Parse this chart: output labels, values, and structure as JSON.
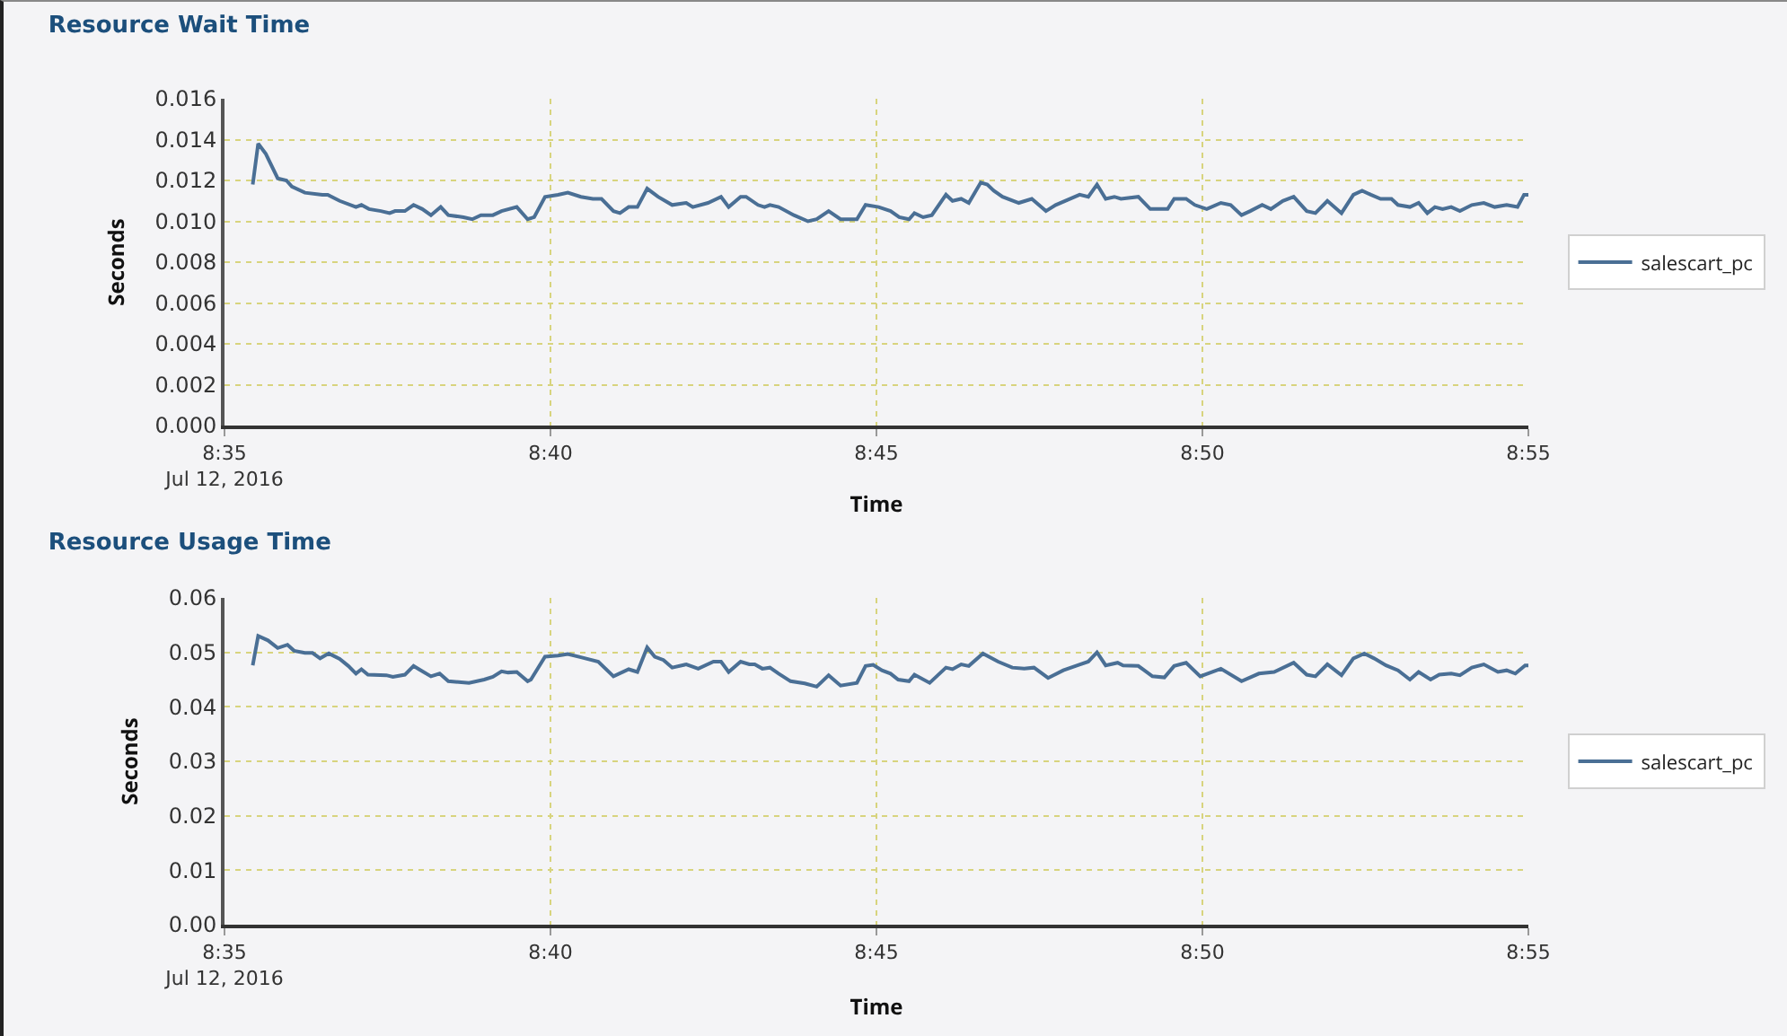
{
  "chart_data": [
    {
      "type": "line",
      "title": "Resource Wait Time",
      "xlabel": "Time",
      "ylabel": "Seconds",
      "legend": "right",
      "grid": true,
      "marker": "none",
      "line_style": "solid",
      "xlim": [
        "2016-07-12T08:35",
        "2016-07-12T08:55"
      ],
      "xticks": [
        {
          "value": "2016-07-12T08:35",
          "label": "8:35\nJul 12, 2016"
        },
        {
          "value": "2016-07-12T08:40",
          "label": "8:40"
        },
        {
          "value": "2016-07-12T08:45",
          "label": "8:45"
        },
        {
          "value": "2016-07-12T08:50",
          "label": "8:50"
        },
        {
          "value": "2016-07-12T08:55",
          "label": "8:55"
        }
      ],
      "ylim": [
        0,
        0.016
      ],
      "yticks": [
        {
          "value": 0,
          "label": "0.000"
        },
        {
          "value": 0.002,
          "label": "0.002"
        },
        {
          "value": 0.004,
          "label": "0.004"
        },
        {
          "value": 0.006,
          "label": "0.006"
        },
        {
          "value": 0.008,
          "label": "0.008"
        },
        {
          "value": 0.01,
          "label": "0.010"
        },
        {
          "value": 0.012,
          "label": "0.012"
        },
        {
          "value": 0.014,
          "label": "0.014"
        },
        {
          "value": 0.016,
          "label": "0.016"
        }
      ],
      "x": [
        "2016-07-12T08:35:26",
        "2016-07-12T08:35:31",
        "2016-07-12T08:35:38",
        "2016-07-12T08:35:49",
        "2016-07-12T08:35:57",
        "2016-07-12T08:36:02",
        "2016-07-12T08:36:14",
        "2016-07-12T08:36:30",
        "2016-07-12T08:36:35",
        "2016-07-12T08:36:46",
        "2016-07-12T08:37:01",
        "2016-07-12T08:37:06",
        "2016-07-12T08:37:13",
        "2016-07-12T08:37:24",
        "2016-07-12T08:37:32",
        "2016-07-12T08:37:37",
        "2016-07-12T08:37:46",
        "2016-07-12T08:37:54",
        "2016-07-12T08:38:02",
        "2016-07-12T08:38:10",
        "2016-07-12T08:38:19",
        "2016-07-12T08:38:26",
        "2016-07-12T08:38:40",
        "2016-07-12T08:38:48",
        "2016-07-12T08:38:56",
        "2016-07-12T08:39:07",
        "2016-07-12T08:39:15",
        "2016-07-12T08:39:29",
        "2016-07-12T08:39:39",
        "2016-07-12T08:39:45",
        "2016-07-12T08:39:55",
        "2016-07-12T08:40:07",
        "2016-07-12T08:40:16",
        "2016-07-12T08:40:28",
        "2016-07-12T08:40:39",
        "2016-07-12T08:40:47",
        "2016-07-12T08:40:58",
        "2016-07-12T08:41:04",
        "2016-07-12T08:41:12",
        "2016-07-12T08:41:20",
        "2016-07-12T08:41:29",
        "2016-07-12T08:41:39",
        "2016-07-12T08:41:52",
        "2016-07-12T08:42:05",
        "2016-07-12T08:42:11",
        "2016-07-12T08:42:25",
        "2016-07-12T08:42:37",
        "2016-07-12T08:42:44",
        "2016-07-12T08:42:55",
        "2016-07-12T08:43:00",
        "2016-07-12T08:43:11",
        "2016-07-12T08:43:17",
        "2016-07-12T08:43:22",
        "2016-07-12T08:43:30",
        "2016-07-12T08:43:44",
        "2016-07-12T08:43:57",
        "2016-07-12T08:44:05",
        "2016-07-12T08:44:16",
        "2016-07-12T08:44:27",
        "2016-07-12T08:44:42",
        "2016-07-12T08:44:50",
        "2016-07-12T08:45:02",
        "2016-07-12T08:45:13",
        "2016-07-12T08:45:21",
        "2016-07-12T08:45:30",
        "2016-07-12T08:45:35",
        "2016-07-12T08:45:43",
        "2016-07-12T08:45:51",
        "2016-07-12T08:46:04",
        "2016-07-12T08:46:10",
        "2016-07-12T08:46:18",
        "2016-07-12T08:46:25",
        "2016-07-12T08:46:36",
        "2016-07-12T08:46:42",
        "2016-07-12T08:46:48",
        "2016-07-12T08:46:56",
        "2016-07-12T08:47:11",
        "2016-07-12T08:47:23",
        "2016-07-12T08:47:36",
        "2016-07-12T08:47:45",
        "2016-07-12T08:48:07",
        "2016-07-12T08:48:15",
        "2016-07-12T08:48:23",
        "2016-07-12T08:48:31",
        "2016-07-12T08:48:39",
        "2016-07-12T08:48:45",
        "2016-07-12T08:49:01",
        "2016-07-12T08:49:12",
        "2016-07-12T08:49:28",
        "2016-07-12T08:49:34",
        "2016-07-12T08:49:45",
        "2016-07-12T08:49:53",
        "2016-07-12T08:50:04",
        "2016-07-12T08:50:17",
        "2016-07-12T08:50:26",
        "2016-07-12T08:50:36",
        "2016-07-12T08:50:44",
        "2016-07-12T08:50:55",
        "2016-07-12T08:51:03",
        "2016-07-12T08:51:14",
        "2016-07-12T08:51:24",
        "2016-07-12T08:51:36",
        "2016-07-12T08:51:44",
        "2016-07-12T08:51:55",
        "2016-07-12T08:52:08",
        "2016-07-12T08:52:19",
        "2016-07-12T08:52:27",
        "2016-07-12T08:52:35",
        "2016-07-12T08:52:44",
        "2016-07-12T08:52:54",
        "2016-07-12T08:53:00",
        "2016-07-12T08:53:11",
        "2016-07-12T08:53:19",
        "2016-07-12T08:53:27",
        "2016-07-12T08:53:34",
        "2016-07-12T08:53:41",
        "2016-07-12T08:53:49",
        "2016-07-12T08:53:57",
        "2016-07-12T08:54:08",
        "2016-07-12T08:54:19",
        "2016-07-12T08:54:29",
        "2016-07-12T08:54:40",
        "2016-07-12T08:54:50",
        "2016-07-12T08:54:56",
        "2016-07-12T08:55:00"
      ],
      "series": [
        {
          "name": "salescart_pc",
          "color": "#4a6f95",
          "values": [
            0.0118,
            0.0138,
            0.0133,
            0.0121,
            0.012,
            0.0117,
            0.0114,
            0.0113,
            0.0113,
            0.011,
            0.0107,
            0.0108,
            0.0106,
            0.0105,
            0.0104,
            0.0105,
            0.0105,
            0.0108,
            0.0106,
            0.0103,
            0.0107,
            0.0103,
            0.0102,
            0.0101,
            0.0103,
            0.0103,
            0.0105,
            0.0107,
            0.0101,
            0.0102,
            0.0112,
            0.0113,
            0.0114,
            0.0112,
            0.0111,
            0.0111,
            0.0105,
            0.0104,
            0.0107,
            0.0107,
            0.0116,
            0.0112,
            0.0108,
            0.0109,
            0.0107,
            0.0109,
            0.0112,
            0.0107,
            0.0112,
            0.0112,
            0.0108,
            0.0107,
            0.0108,
            0.0107,
            0.0103,
            0.01,
            0.0101,
            0.0105,
            0.0101,
            0.0101,
            0.0108,
            0.0107,
            0.0105,
            0.0102,
            0.0101,
            0.0104,
            0.0102,
            0.0103,
            0.0113,
            0.011,
            0.0111,
            0.0109,
            0.0119,
            0.0118,
            0.0115,
            0.0112,
            0.0109,
            0.0111,
            0.0105,
            0.0108,
            0.0113,
            0.0112,
            0.0118,
            0.0111,
            0.0112,
            0.0111,
            0.0112,
            0.0106,
            0.0106,
            0.0111,
            0.0111,
            0.0108,
            0.0106,
            0.0109,
            0.0108,
            0.0103,
            0.0105,
            0.0108,
            0.0106,
            0.011,
            0.0112,
            0.0105,
            0.0104,
            0.011,
            0.0104,
            0.0113,
            0.0115,
            0.0113,
            0.0111,
            0.0111,
            0.0108,
            0.0107,
            0.0109,
            0.0104,
            0.0107,
            0.0106,
            0.0107,
            0.0105,
            0.0108,
            0.0109,
            0.0107,
            0.0108,
            0.0107,
            0.0113,
            0.0113
          ]
        }
      ]
    },
    {
      "type": "line",
      "title": "Resource Usage Time",
      "xlabel": "Time",
      "ylabel": "Seconds",
      "legend": "right",
      "grid": true,
      "marker": "none",
      "line_style": "solid",
      "xlim": [
        "2016-07-12T08:35",
        "2016-07-12T08:55"
      ],
      "xticks": [
        {
          "value": "2016-07-12T08:35",
          "label": "8:35\nJul 12, 2016"
        },
        {
          "value": "2016-07-12T08:40",
          "label": "8:40"
        },
        {
          "value": "2016-07-12T08:45",
          "label": "8:45"
        },
        {
          "value": "2016-07-12T08:50",
          "label": "8:50"
        },
        {
          "value": "2016-07-12T08:55",
          "label": "8:55"
        }
      ],
      "ylim": [
        0,
        0.06
      ],
      "yticks": [
        {
          "value": 0,
          "label": "0.00"
        },
        {
          "value": 0.01,
          "label": "0.01"
        },
        {
          "value": 0.02,
          "label": "0.02"
        },
        {
          "value": 0.03,
          "label": "0.03"
        },
        {
          "value": 0.04,
          "label": "0.04"
        },
        {
          "value": 0.05,
          "label": "0.05"
        },
        {
          "value": 0.06,
          "label": "0.06"
        }
      ],
      "x": [
        "2016-07-12T08:35:26",
        "2016-07-12T08:35:31",
        "2016-07-12T08:35:40",
        "2016-07-12T08:35:49",
        "2016-07-12T08:35:58",
        "2016-07-12T08:36:04",
        "2016-07-12T08:36:14",
        "2016-07-12T08:36:21",
        "2016-07-12T08:36:28",
        "2016-07-12T08:36:36",
        "2016-07-12T08:36:46",
        "2016-07-12T08:36:54",
        "2016-07-12T08:37:01",
        "2016-07-12T08:37:06",
        "2016-07-12T08:37:12",
        "2016-07-12T08:37:29",
        "2016-07-12T08:37:35",
        "2016-07-12T08:37:46",
        "2016-07-12T08:37:54",
        "2016-07-12T08:37:59",
        "2016-07-12T08:38:10",
        "2016-07-12T08:38:18",
        "2016-07-12T08:38:26",
        "2016-07-12T08:38:45",
        "2016-07-12T08:38:59",
        "2016-07-12T08:39:07",
        "2016-07-12T08:39:15",
        "2016-07-12T08:39:21",
        "2016-07-12T08:39:29",
        "2016-07-12T08:39:39",
        "2016-07-12T08:39:42",
        "2016-07-12T08:39:55",
        "2016-07-12T08:40:07",
        "2016-07-12T08:40:16",
        "2016-07-12T08:40:28",
        "2016-07-12T08:40:44",
        "2016-07-12T08:40:58",
        "2016-07-12T08:41:12",
        "2016-07-12T08:41:20",
        "2016-07-12T08:41:29",
        "2016-07-12T08:41:36",
        "2016-07-12T08:41:44",
        "2016-07-12T08:41:52",
        "2016-07-12T08:42:05",
        "2016-07-12T08:42:16",
        "2016-07-12T08:42:30",
        "2016-07-12T08:42:37",
        "2016-07-12T08:42:44",
        "2016-07-12T08:42:55",
        "2016-07-12T08:43:03",
        "2016-07-12T08:43:08",
        "2016-07-12T08:43:15",
        "2016-07-12T08:43:22",
        "2016-07-12T08:43:30",
        "2016-07-12T08:43:41",
        "2016-07-12T08:43:54",
        "2016-07-12T08:44:05",
        "2016-07-12T08:44:16",
        "2016-07-12T08:44:27",
        "2016-07-12T08:44:42",
        "2016-07-12T08:44:50",
        "2016-07-12T08:44:57",
        "2016-07-12T08:45:05",
        "2016-07-12T08:45:13",
        "2016-07-12T08:45:20",
        "2016-07-12T08:45:30",
        "2016-07-12T08:45:35",
        "2016-07-12T08:45:49",
        "2016-07-12T08:46:04",
        "2016-07-12T08:46:10",
        "2016-07-12T08:46:18",
        "2016-07-12T08:46:25",
        "2016-07-12T08:46:38",
        "2016-07-12T08:46:52",
        "2016-07-12T08:47:05",
        "2016-07-12T08:47:16",
        "2016-07-12T08:47:25",
        "2016-07-12T08:47:38",
        "2016-07-12T08:47:52",
        "2016-07-12T08:48:05",
        "2016-07-12T08:48:15",
        "2016-07-12T08:48:23",
        "2016-07-12T08:48:31",
        "2016-07-12T08:48:42",
        "2016-07-12T08:48:47",
        "2016-07-12T08:49:01",
        "2016-07-12T08:49:14",
        "2016-07-12T08:49:25",
        "2016-07-12T08:49:34",
        "2016-07-12T08:49:45",
        "2016-07-12T08:49:58",
        "2016-07-12T08:50:17",
        "2016-07-12T08:50:36",
        "2016-07-12T08:50:52",
        "2016-07-12T08:51:06",
        "2016-07-12T08:51:24",
        "2016-07-12T08:51:36",
        "2016-07-12T08:51:44",
        "2016-07-12T08:51:55",
        "2016-07-12T08:52:08",
        "2016-07-12T08:52:19",
        "2016-07-12T08:52:29",
        "2016-07-12T08:52:38",
        "2016-07-12T08:52:49",
        "2016-07-12T08:53:00",
        "2016-07-12T08:53:11",
        "2016-07-12T08:53:19",
        "2016-07-12T08:53:30",
        "2016-07-12T08:53:38",
        "2016-07-12T08:53:49",
        "2016-07-12T08:53:57",
        "2016-07-12T08:54:08",
        "2016-07-12T08:54:19",
        "2016-07-12T08:54:32",
        "2016-07-12T08:54:40",
        "2016-07-12T08:54:48",
        "2016-07-12T08:54:57",
        "2016-07-12T08:55:00"
      ],
      "series": [
        {
          "name": "salescart_pc",
          "color": "#4a6f95",
          "values": [
            0.0476,
            0.053,
            0.0522,
            0.0508,
            0.0514,
            0.0503,
            0.0499,
            0.0499,
            0.0489,
            0.0498,
            0.0488,
            0.0475,
            0.0461,
            0.0469,
            0.0459,
            0.0458,
            0.0455,
            0.0459,
            0.0475,
            0.0469,
            0.0456,
            0.0461,
            0.0447,
            0.0444,
            0.045,
            0.0455,
            0.0465,
            0.0463,
            0.0464,
            0.0447,
            0.045,
            0.0492,
            0.0494,
            0.0497,
            0.0491,
            0.0483,
            0.0456,
            0.0469,
            0.0464,
            0.0509,
            0.0492,
            0.0486,
            0.0472,
            0.0478,
            0.047,
            0.0483,
            0.0483,
            0.0464,
            0.0483,
            0.0478,
            0.0478,
            0.047,
            0.0472,
            0.0461,
            0.0447,
            0.0443,
            0.0437,
            0.0458,
            0.0439,
            0.0444,
            0.0475,
            0.0477,
            0.0467,
            0.0461,
            0.045,
            0.0447,
            0.0459,
            0.0444,
            0.0472,
            0.0469,
            0.0478,
            0.0475,
            0.0498,
            0.0483,
            0.0472,
            0.047,
            0.0472,
            0.0453,
            0.0467,
            0.0476,
            0.0483,
            0.05,
            0.0476,
            0.0481,
            0.0476,
            0.0475,
            0.0456,
            0.0454,
            0.0475,
            0.0481,
            0.0456,
            0.047,
            0.0447,
            0.0461,
            0.0464,
            0.0481,
            0.0459,
            0.0456,
            0.0478,
            0.0458,
            0.0489,
            0.0498,
            0.0489,
            0.0476,
            0.0467,
            0.045,
            0.0464,
            0.045,
            0.0459,
            0.0461,
            0.0458,
            0.0472,
            0.0478,
            0.0464,
            0.0467,
            0.0461,
            0.0476,
            0.0476
          ]
        }
      ]
    }
  ]
}
